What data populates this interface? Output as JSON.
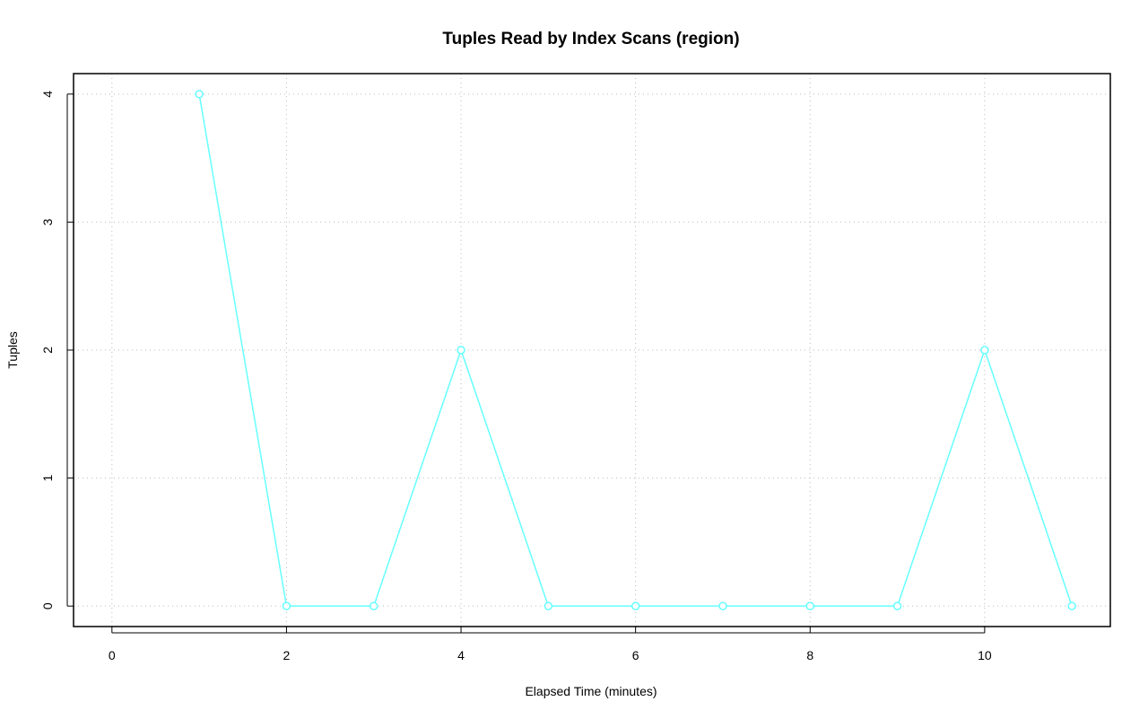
{
  "chart_data": {
    "type": "line",
    "title": "Tuples Read by Index Scans (region)",
    "x_label": "Elapsed Time (minutes)",
    "y_label": "Tuples",
    "x": [
      1,
      2,
      3,
      4,
      5,
      6,
      7,
      8,
      9,
      10,
      11
    ],
    "series": [
      {
        "color": "#66ffff",
        "values": [
          4,
          0,
          0,
          2,
          0,
          0,
          0,
          0,
          0,
          2,
          0
        ]
      }
    ],
    "xlim": [
      -0.44,
      11.44
    ],
    "xticks": [
      0,
      2,
      4,
      6,
      8,
      10
    ],
    "ylim": [
      -0.16,
      4.16
    ],
    "yticks": [
      0,
      1,
      2,
      3,
      4
    ],
    "grid": true
  }
}
